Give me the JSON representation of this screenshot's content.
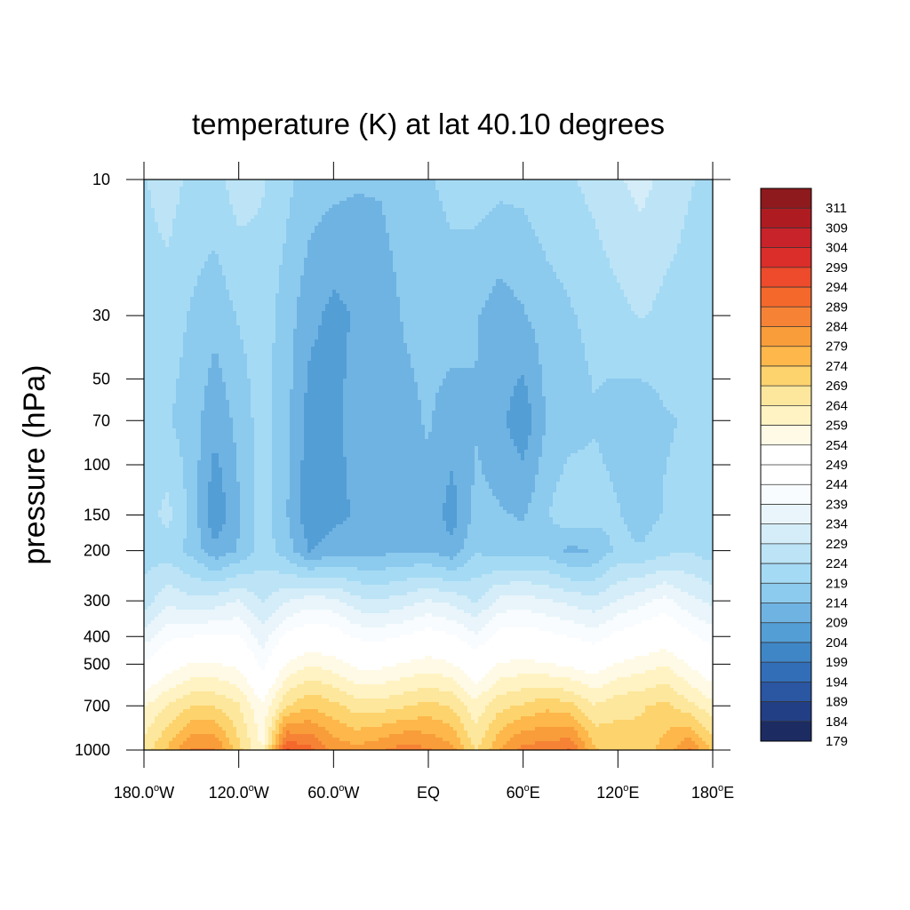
{
  "chart_data": {
    "type": "heatmap",
    "title": "temperature (K) at lat 40.10 degrees",
    "ylabel": "pressure (hPa)",
    "xlabel": "",
    "y_scale": "log",
    "y_inverted": true,
    "ylim": [
      1000,
      10
    ],
    "xlim": [
      -180,
      180
    ],
    "x_ticks": [
      {
        "value": -180,
        "main": "180.0",
        "deg": "o",
        "dir": "W"
      },
      {
        "value": -120,
        "main": "120.0",
        "deg": "o",
        "dir": "W"
      },
      {
        "value": -60,
        "main": "60.0",
        "deg": "o",
        "dir": "W"
      },
      {
        "value": 0,
        "main": "EQ",
        "deg": "",
        "dir": ""
      },
      {
        "value": 60,
        "main": "60",
        "deg": "o",
        "dir": "E"
      },
      {
        "value": 120,
        "main": "120",
        "deg": "o",
        "dir": "E"
      },
      {
        "value": 180,
        "main": "180",
        "deg": "o",
        "dir": "E"
      }
    ],
    "y_ticks": [
      {
        "value": 10,
        "label": "10"
      },
      {
        "value": 30,
        "label": "30"
      },
      {
        "value": 50,
        "label": "50"
      },
      {
        "value": 70,
        "label": "70"
      },
      {
        "value": 100,
        "label": "100"
      },
      {
        "value": 150,
        "label": "150"
      },
      {
        "value": 200,
        "label": "200"
      },
      {
        "value": 300,
        "label": "300"
      },
      {
        "value": 400,
        "label": "400"
      },
      {
        "value": 500,
        "label": "500"
      },
      {
        "value": 700,
        "label": "700"
      },
      {
        "value": 1000,
        "label": "1000"
      }
    ],
    "longitudes": [
      -180,
      -165,
      -150,
      -135,
      -120,
      -105,
      -90,
      -75,
      -60,
      -45,
      -30,
      -15,
      0,
      15,
      30,
      45,
      60,
      75,
      90,
      105,
      120,
      135,
      150,
      165,
      180
    ],
    "pressure_levels": [
      10,
      30,
      70,
      150,
      200,
      300,
      500,
      700,
      1000
    ],
    "temperature": [
      [
        221,
        224,
        220,
        220,
        224,
        222,
        218,
        214,
        213,
        212,
        212,
        214,
        216,
        218,
        219,
        218,
        218,
        220,
        221,
        223,
        226,
        228,
        225,
        222,
        220
      ],
      [
        219,
        219,
        216,
        213,
        217,
        219,
        214,
        208,
        205,
        207,
        209,
        212,
        213,
        214,
        212,
        209,
        211,
        214,
        216,
        218,
        220,
        222,
        220,
        219,
        219
      ],
      [
        218,
        217,
        214,
        208,
        213,
        219,
        213,
        204,
        204,
        210,
        208,
        210,
        212,
        209,
        211,
        208,
        203,
        212,
        214,
        216,
        214,
        213,
        216,
        217,
        218
      ],
      [
        219,
        223,
        215,
        202,
        211,
        220,
        212,
        203,
        205,
        207,
        207,
        210,
        210,
        204,
        213,
        212,
        211,
        216,
        221,
        219,
        217,
        214,
        217,
        218,
        219
      ],
      [
        219,
        219,
        215,
        208,
        212,
        219,
        214,
        206,
        209,
        210,
        210,
        211,
        211,
        208,
        216,
        214,
        214,
        214,
        210,
        212,
        218,
        217,
        220,
        221,
        219
      ],
      [
        224,
        230,
        228,
        229,
        232,
        226,
        231,
        234,
        233,
        228,
        227,
        229,
        232,
        230,
        226,
        233,
        234,
        232,
        230,
        228,
        232,
        235,
        238,
        233,
        230
      ],
      [
        242,
        248,
        252,
        252,
        250,
        240,
        252,
        256,
        254,
        250,
        250,
        252,
        254,
        252,
        246,
        252,
        253,
        252,
        250,
        248,
        252,
        254,
        256,
        251,
        246
      ],
      [
        256,
        262,
        266,
        266,
        262,
        252,
        266,
        271,
        268,
        264,
        264,
        266,
        268,
        266,
        258,
        265,
        267,
        270,
        268,
        262,
        265,
        266,
        268,
        263,
        258
      ],
      [
        264,
        272,
        282,
        282,
        268,
        256,
        292,
        288,
        280,
        278,
        281,
        284,
        282,
        278,
        266,
        276,
        284,
        284,
        287,
        272,
        270,
        268,
        274,
        282,
        270
      ]
    ],
    "colorbar": {
      "labels": [
        "311",
        "309",
        "304",
        "299",
        "294",
        "289",
        "284",
        "279",
        "274",
        "269",
        "264",
        "259",
        "254",
        "249",
        "244",
        "239",
        "234",
        "229",
        "224",
        "219",
        "214",
        "209",
        "204",
        "199",
        "194",
        "189",
        "184",
        "179"
      ],
      "colors": [
        "#8e1a1d",
        "#ae1c22",
        "#c8222a",
        "#db2d2a",
        "#ed4b2b",
        "#f5682c",
        "#f68236",
        "#f89d3a",
        "#fdb74a",
        "#fdd36d",
        "#fde79c",
        "#fff3c3",
        "#fffae6",
        "#ffffff",
        "#ffffff",
        "#f8fcfe",
        "#e9f5fb",
        "#d4edf8",
        "#bce4f6",
        "#a5daf4",
        "#8ccaee",
        "#6fb3e2",
        "#549ed6",
        "#3f86c7",
        "#326eb8",
        "#2a56a2",
        "#223f86",
        "#1c2c62"
      ]
    }
  }
}
